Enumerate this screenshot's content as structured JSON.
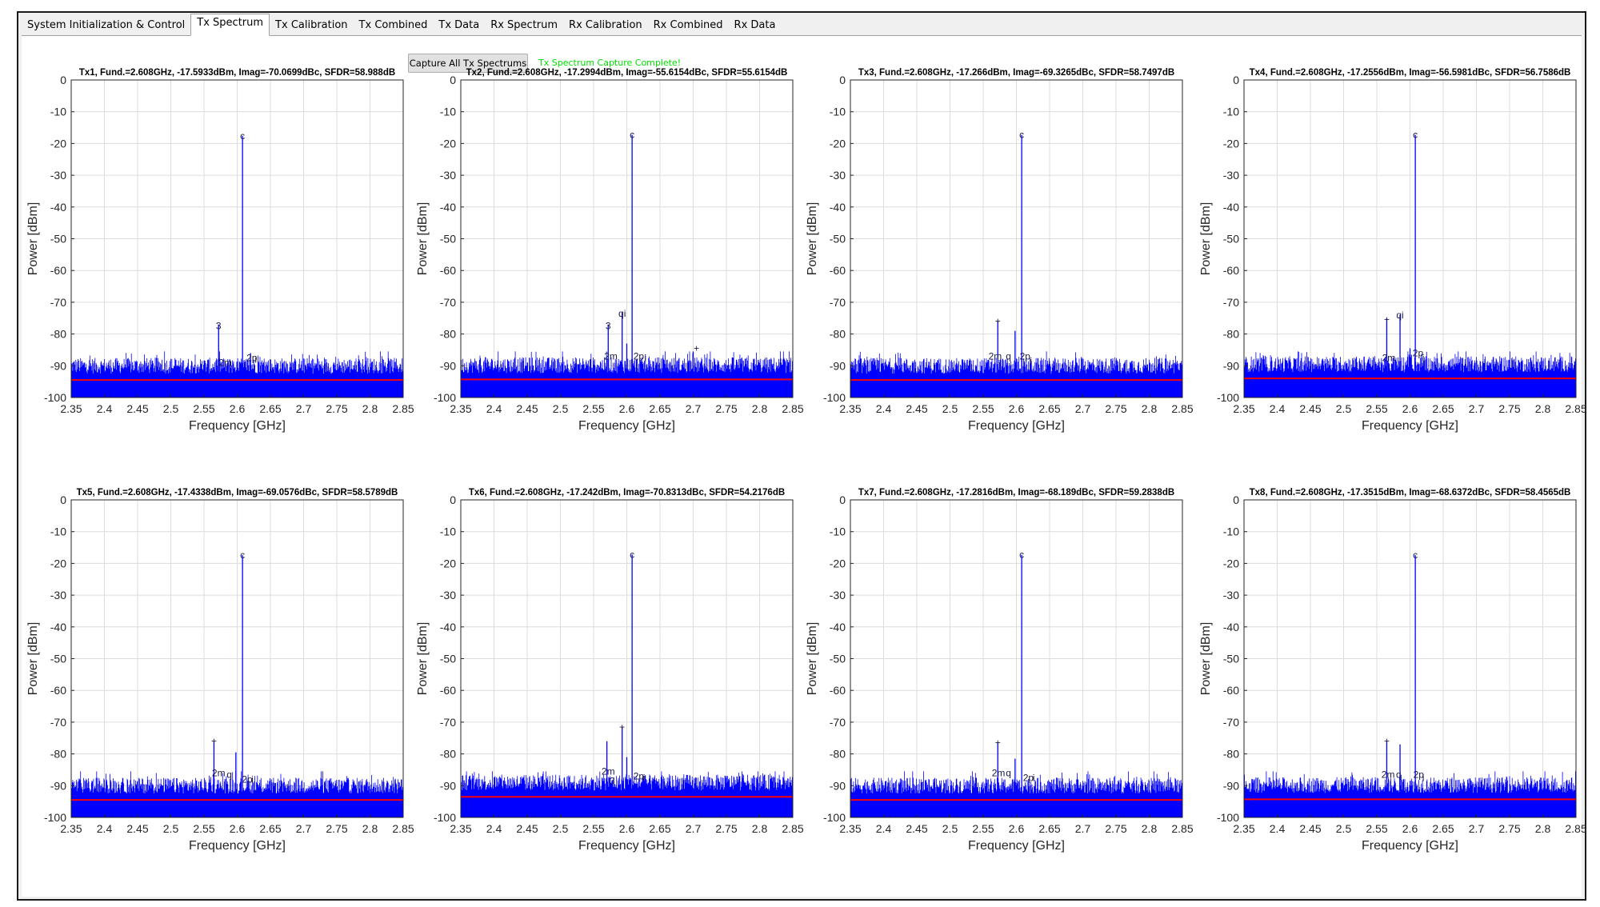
{
  "tabs": [
    {
      "label": "System Initialization & Control",
      "active": false
    },
    {
      "label": "Tx Spectrum",
      "active": true
    },
    {
      "label": "Tx Calibration",
      "active": false
    },
    {
      "label": "Tx Combined",
      "active": false
    },
    {
      "label": "Tx Data",
      "active": false
    },
    {
      "label": "Rx Spectrum",
      "active": false
    },
    {
      "label": "Rx Calibration",
      "active": false
    },
    {
      "label": "Rx Combined",
      "active": false
    },
    {
      "label": "Rx Data",
      "active": false
    }
  ],
  "capture_button_label": "Capture All Tx Spectrums",
  "status_message": "Tx Spectrum Capture Complete!",
  "colors": {
    "spectrum": "#0000ff",
    "noise_floor": "#ff0000",
    "status": "#00e000",
    "grid": "#dcdcdc"
  },
  "chart_data": [
    {
      "type": "line",
      "title": "Tx1, Fund.=2.608GHz, -17.5933dBm, Imag=-70.0699dBc, SFDR=58.988dB",
      "xlabel": "Frequency [GHz]",
      "ylabel": "Power [dBm]",
      "xlim": [
        2.35,
        2.85
      ],
      "ylim": [
        -100,
        0
      ],
      "xticks": [
        "2.35",
        "2.4",
        "2.45",
        "2.5",
        "2.55",
        "2.6",
        "2.65",
        "2.7",
        "2.75",
        "2.8",
        "2.85"
      ],
      "yticks": [
        "0",
        "-10",
        "-20",
        "-30",
        "-40",
        "-50",
        "-60",
        "-70",
        "-80",
        "-90",
        "-100"
      ],
      "noise_floor": -94.5,
      "spurs": [
        {
          "x": 2.608,
          "y": -17.6
        },
        {
          "x": 2.572,
          "y": -77.0
        },
        {
          "x": 2.589,
          "y": -88.0
        },
        {
          "x": 2.62,
          "y": -86.0
        }
      ],
      "markers": [
        {
          "x": 2.608,
          "y": -17.6,
          "label": "c"
        },
        {
          "x": 2.572,
          "y": -77.5,
          "label": "3"
        },
        {
          "x": 2.582,
          "y": -89.0,
          "label": "2m"
        },
        {
          "x": 2.622,
          "y": -87.5,
          "label": "2p"
        },
        {
          "x": 2.628,
          "y": -88.0,
          "label": "i"
        }
      ]
    },
    {
      "type": "line",
      "title": "Tx2, Fund.=2.608GHz, -17.2994dBm, Imag=-55.6154dBc, SFDR=55.6154dB",
      "xlabel": "Frequency [GHz]",
      "ylabel": "Power [dBm]",
      "xlim": [
        2.35,
        2.85
      ],
      "ylim": [
        -100,
        0
      ],
      "xticks": [
        "2.35",
        "2.4",
        "2.45",
        "2.5",
        "2.55",
        "2.6",
        "2.65",
        "2.7",
        "2.75",
        "2.8",
        "2.85"
      ],
      "yticks": [
        "0",
        "-10",
        "-20",
        "-30",
        "-40",
        "-50",
        "-60",
        "-70",
        "-80",
        "-90",
        "-100"
      ],
      "noise_floor": -94.3,
      "spurs": [
        {
          "x": 2.608,
          "y": -17.3
        },
        {
          "x": 2.572,
          "y": -77.0
        },
        {
          "x": 2.593,
          "y": -73.0
        },
        {
          "x": 2.6,
          "y": -83.0
        },
        {
          "x": 2.7,
          "y": -85.5
        }
      ],
      "markers": [
        {
          "x": 2.608,
          "y": -17.3,
          "label": "c"
        },
        {
          "x": 2.572,
          "y": -77.5,
          "label": "3"
        },
        {
          "x": 2.593,
          "y": -73.5,
          "label": "qi"
        },
        {
          "x": 2.576,
          "y": -87.0,
          "label": "2m"
        },
        {
          "x": 2.618,
          "y": -87.0,
          "label": "2p"
        },
        {
          "x": 2.628,
          "y": -87.5,
          "label": "i"
        },
        {
          "x": 2.705,
          "y": -84.5,
          "label": "+"
        }
      ]
    },
    {
      "type": "line",
      "title": "Tx3, Fund.=2.608GHz, -17.266dBm, Imag=-69.3265dBc, SFDR=58.7497dB",
      "xlabel": "Frequency [GHz]",
      "ylabel": "Power [dBm]",
      "xlim": [
        2.35,
        2.85
      ],
      "ylim": [
        -100,
        0
      ],
      "xticks": [
        "2.35",
        "2.4",
        "2.45",
        "2.5",
        "2.55",
        "2.6",
        "2.65",
        "2.7",
        "2.75",
        "2.8",
        "2.85"
      ],
      "yticks": [
        "0",
        "-10",
        "-20",
        "-30",
        "-40",
        "-50",
        "-60",
        "-70",
        "-80",
        "-90",
        "-100"
      ],
      "noise_floor": -94.5,
      "spurs": [
        {
          "x": 2.608,
          "y": -17.3
        },
        {
          "x": 2.572,
          "y": -76.0
        },
        {
          "x": 2.598,
          "y": -79.0
        }
      ],
      "markers": [
        {
          "x": 2.608,
          "y": -17.3,
          "label": "c"
        },
        {
          "x": 2.572,
          "y": -76.0,
          "label": "+"
        },
        {
          "x": 2.568,
          "y": -87.0,
          "label": "2m"
        },
        {
          "x": 2.588,
          "y": -87.0,
          "label": "q"
        },
        {
          "x": 2.613,
          "y": -87.0,
          "label": "2p"
        },
        {
          "x": 2.622,
          "y": -88.5,
          "label": "i"
        }
      ]
    },
    {
      "type": "line",
      "title": "Tx4, Fund.=2.608GHz, -17.2556dBm, Imag=-56.5981dBc, SFDR=56.7586dB",
      "xlabel": "Frequency [GHz]",
      "ylabel": "Power [dBm]",
      "xlim": [
        2.35,
        2.85
      ],
      "ylim": [
        -100,
        0
      ],
      "xticks": [
        "2.35",
        "2.4",
        "2.45",
        "2.5",
        "2.55",
        "2.6",
        "2.65",
        "2.7",
        "2.75",
        "2.8",
        "2.85"
      ],
      "yticks": [
        "0",
        "-10",
        "-20",
        "-30",
        "-40",
        "-50",
        "-60",
        "-70",
        "-80",
        "-90",
        "-100"
      ],
      "noise_floor": -94.0,
      "spurs": [
        {
          "x": 2.608,
          "y": -17.3
        },
        {
          "x": 2.565,
          "y": -75.0
        },
        {
          "x": 2.585,
          "y": -74.0
        },
        {
          "x": 2.6,
          "y": -84.5
        }
      ],
      "markers": [
        {
          "x": 2.608,
          "y": -17.3,
          "label": "c"
        },
        {
          "x": 2.565,
          "y": -75.5,
          "label": "+"
        },
        {
          "x": 2.585,
          "y": -74.0,
          "label": "qi"
        },
        {
          "x": 2.568,
          "y": -87.5,
          "label": "2m"
        },
        {
          "x": 2.612,
          "y": -86.0,
          "label": "2p"
        },
        {
          "x": 2.62,
          "y": -87.5,
          "label": "i"
        }
      ]
    },
    {
      "type": "line",
      "title": "Tx5, Fund.=2.608GHz, -17.4338dBm, Imag=-69.0576dBc, SFDR=58.5789dB",
      "xlabel": "Frequency [GHz]",
      "ylabel": "Power [dBm]",
      "xlim": [
        2.35,
        2.85
      ],
      "ylim": [
        -100,
        0
      ],
      "xticks": [
        "2.35",
        "2.4",
        "2.45",
        "2.5",
        "2.55",
        "2.6",
        "2.65",
        "2.7",
        "2.75",
        "2.8",
        "2.85"
      ],
      "yticks": [
        "0",
        "-10",
        "-20",
        "-30",
        "-40",
        "-50",
        "-60",
        "-70",
        "-80",
        "-90",
        "-100"
      ],
      "noise_floor": -94.5,
      "spurs": [
        {
          "x": 2.608,
          "y": -17.4
        },
        {
          "x": 2.565,
          "y": -76.0
        },
        {
          "x": 2.598,
          "y": -79.5
        }
      ],
      "markers": [
        {
          "x": 2.608,
          "y": -17.4,
          "label": "c"
        },
        {
          "x": 2.565,
          "y": -76.0,
          "label": "+"
        },
        {
          "x": 2.572,
          "y": -86.0,
          "label": "2m"
        },
        {
          "x": 2.588,
          "y": -86.5,
          "label": "q"
        },
        {
          "x": 2.615,
          "y": -88.0,
          "label": "2p"
        },
        {
          "x": 2.623,
          "y": -88.0,
          "label": "i"
        }
      ]
    },
    {
      "type": "line",
      "title": "Tx6, Fund.=2.608GHz, -17.242dBm, Imag=-70.8313dBc, SFDR=54.2176dB",
      "xlabel": "Frequency [GHz]",
      "ylabel": "Power [dBm]",
      "xlim": [
        2.35,
        2.85
      ],
      "ylim": [
        -100,
        0
      ],
      "xticks": [
        "2.35",
        "2.4",
        "2.45",
        "2.5",
        "2.55",
        "2.6",
        "2.65",
        "2.7",
        "2.75",
        "2.8",
        "2.85"
      ],
      "yticks": [
        "0",
        "-10",
        "-20",
        "-30",
        "-40",
        "-50",
        "-60",
        "-70",
        "-80",
        "-90",
        "-100"
      ],
      "noise_floor": -93.5,
      "spurs": [
        {
          "x": 2.608,
          "y": -17.2
        },
        {
          "x": 2.57,
          "y": -76.0
        },
        {
          "x": 2.593,
          "y": -71.5
        },
        {
          "x": 2.6,
          "y": -81.0
        }
      ],
      "markers": [
        {
          "x": 2.608,
          "y": -17.2,
          "label": "c"
        },
        {
          "x": 2.593,
          "y": -71.5,
          "label": "+"
        },
        {
          "x": 2.572,
          "y": -85.5,
          "label": "2m"
        },
        {
          "x": 2.578,
          "y": -88.5,
          "label": "3"
        },
        {
          "x": 2.618,
          "y": -87.0,
          "label": "2p"
        },
        {
          "x": 2.626,
          "y": -87.5,
          "label": "i"
        }
      ]
    },
    {
      "type": "line",
      "title": "Tx7, Fund.=2.608GHz, -17.2816dBm, Imag=-68.189dBc, SFDR=59.2838dB",
      "xlabel": "Frequency [GHz]",
      "ylabel": "Power [dBm]",
      "xlim": [
        2.35,
        2.85
      ],
      "ylim": [
        -100,
        0
      ],
      "xticks": [
        "2.35",
        "2.4",
        "2.45",
        "2.5",
        "2.55",
        "2.6",
        "2.65",
        "2.7",
        "2.75",
        "2.8",
        "2.85"
      ],
      "yticks": [
        "0",
        "-10",
        "-20",
        "-30",
        "-40",
        "-50",
        "-60",
        "-70",
        "-80",
        "-90",
        "-100"
      ],
      "noise_floor": -94.5,
      "spurs": [
        {
          "x": 2.608,
          "y": -17.3
        },
        {
          "x": 2.572,
          "y": -76.5
        },
        {
          "x": 2.598,
          "y": -81.5
        }
      ],
      "markers": [
        {
          "x": 2.608,
          "y": -17.3,
          "label": "c"
        },
        {
          "x": 2.572,
          "y": -76.5,
          "label": "+"
        },
        {
          "x": 2.573,
          "y": -86.0,
          "label": "2m"
        },
        {
          "x": 2.588,
          "y": -86.0,
          "label": "q"
        },
        {
          "x": 2.618,
          "y": -87.5,
          "label": "2p"
        },
        {
          "x": 2.626,
          "y": -87.5,
          "label": "i"
        }
      ]
    },
    {
      "type": "line",
      "title": "Tx8, Fund.=2.608GHz, -17.3515dBm, Imag=-68.6372dBc, SFDR=58.4565dB",
      "xlabel": "Frequency [GHz]",
      "ylabel": "Power [dBm]",
      "xlim": [
        2.35,
        2.85
      ],
      "ylim": [
        -100,
        0
      ],
      "xticks": [
        "2.35",
        "2.4",
        "2.45",
        "2.5",
        "2.55",
        "2.6",
        "2.65",
        "2.7",
        "2.75",
        "2.8",
        "2.85"
      ],
      "yticks": [
        "0",
        "-10",
        "-20",
        "-30",
        "-40",
        "-50",
        "-60",
        "-70",
        "-80",
        "-90",
        "-100"
      ],
      "noise_floor": -94.3,
      "spurs": [
        {
          "x": 2.608,
          "y": -17.4
        },
        {
          "x": 2.565,
          "y": -76.0
        },
        {
          "x": 2.585,
          "y": -77.0
        }
      ],
      "markers": [
        {
          "x": 2.608,
          "y": -17.4,
          "label": "c"
        },
        {
          "x": 2.565,
          "y": -76.0,
          "label": "+"
        },
        {
          "x": 2.567,
          "y": -86.5,
          "label": "2m"
        },
        {
          "x": 2.583,
          "y": -86.5,
          "label": "q"
        },
        {
          "x": 2.613,
          "y": -86.5,
          "label": "2p"
        },
        {
          "x": 2.62,
          "y": -87.5,
          "label": "i"
        }
      ]
    }
  ]
}
